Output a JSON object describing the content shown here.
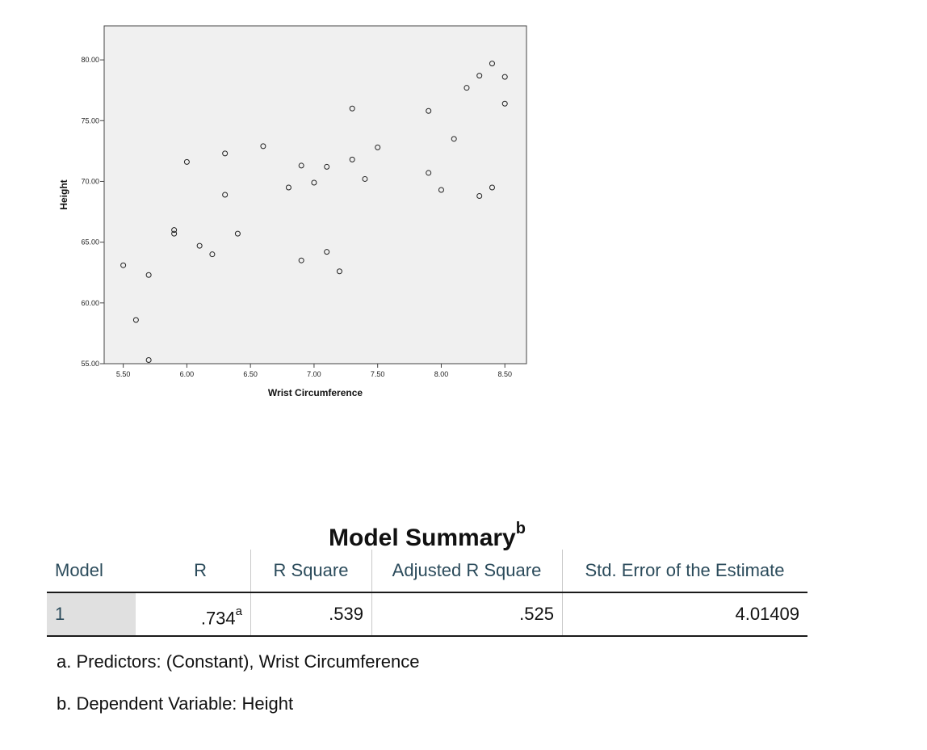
{
  "chart_data": {
    "type": "scatter",
    "xlabel": "Wrist Circumference",
    "ylabel": "Height",
    "xlim": [
      5.35,
      8.67
    ],
    "ylim": [
      55.0,
      82.8
    ],
    "xticks": [
      "5.50",
      "6.00",
      "6.50",
      "7.00",
      "7.50",
      "8.00",
      "8.50"
    ],
    "yticks": [
      "55.00",
      "60.00",
      "65.00",
      "70.00",
      "75.00",
      "80.00"
    ],
    "xtick_values": [
      5.5,
      6.0,
      6.5,
      7.0,
      7.5,
      8.0,
      8.5
    ],
    "ytick_values": [
      55,
      60,
      65,
      70,
      75,
      80
    ],
    "grid": false,
    "plot_background": "#f0f0f0",
    "marker": "open-circle",
    "points": [
      [
        5.5,
        63.1
      ],
      [
        5.6,
        58.6
      ],
      [
        5.7,
        62.3
      ],
      [
        5.7,
        55.3
      ],
      [
        5.9,
        66.0
      ],
      [
        5.9,
        65.7
      ],
      [
        6.0,
        71.6
      ],
      [
        6.1,
        64.7
      ],
      [
        6.2,
        64.0
      ],
      [
        6.3,
        72.3
      ],
      [
        6.3,
        68.9
      ],
      [
        6.4,
        65.7
      ],
      [
        6.6,
        72.9
      ],
      [
        6.8,
        69.5
      ],
      [
        6.9,
        71.3
      ],
      [
        6.9,
        63.5
      ],
      [
        7.0,
        69.9
      ],
      [
        7.1,
        71.2
      ],
      [
        7.1,
        64.2
      ],
      [
        7.2,
        62.6
      ],
      [
        7.3,
        76.0
      ],
      [
        7.3,
        71.8
      ],
      [
        7.4,
        70.2
      ],
      [
        7.5,
        72.8
      ],
      [
        7.9,
        75.8
      ],
      [
        7.9,
        70.7
      ],
      [
        8.0,
        69.3
      ],
      [
        8.1,
        73.5
      ],
      [
        8.2,
        77.7
      ],
      [
        8.3,
        78.7
      ],
      [
        8.3,
        68.8
      ],
      [
        8.4,
        79.7
      ],
      [
        8.4,
        69.5
      ],
      [
        8.5,
        78.6
      ],
      [
        8.5,
        76.4
      ]
    ]
  },
  "summary": {
    "title": "Model Summary",
    "title_sup": "b",
    "headers": [
      "Model",
      "R",
      "R Square",
      "Adjusted R Square",
      "Std. Error of the Estimate"
    ],
    "row": {
      "model": "1",
      "r": ".734",
      "r_sup": "a",
      "r_square": ".539",
      "adj_r_square": ".525",
      "std_error": "4.01409"
    },
    "notes": [
      "a. Predictors: (Constant), Wrist Circumference",
      "b. Dependent Variable: Height"
    ]
  }
}
